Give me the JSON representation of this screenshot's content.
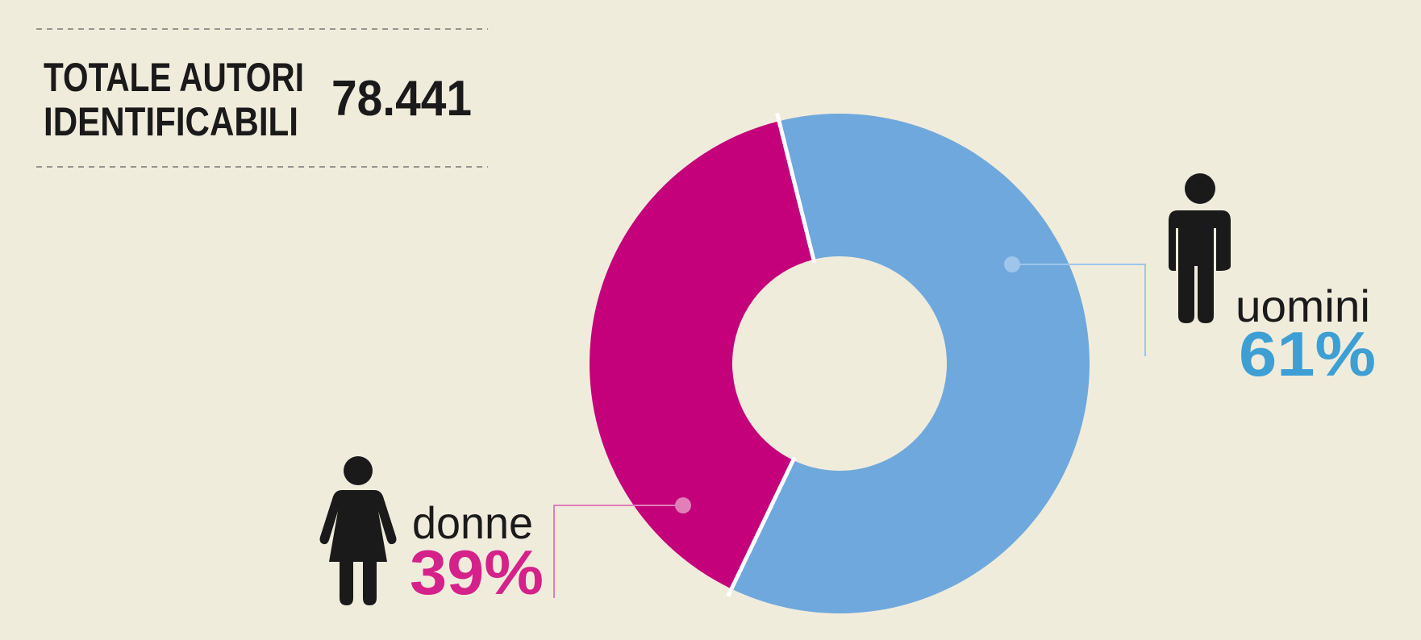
{
  "chart_data": {
    "type": "pie",
    "title": [
      "TOTALE AUTORI",
      "IDENTIFICABILI"
    ],
    "total": "78.441",
    "categories": [
      "uomini",
      "donne"
    ],
    "values": [
      61,
      39
    ],
    "value_labels": [
      "61%",
      "39%"
    ],
    "colors": [
      "#6fa8dc",
      "#c4007a"
    ],
    "label_colors": [
      "#3d9fd3",
      "#d5218a"
    ],
    "donut": true
  }
}
